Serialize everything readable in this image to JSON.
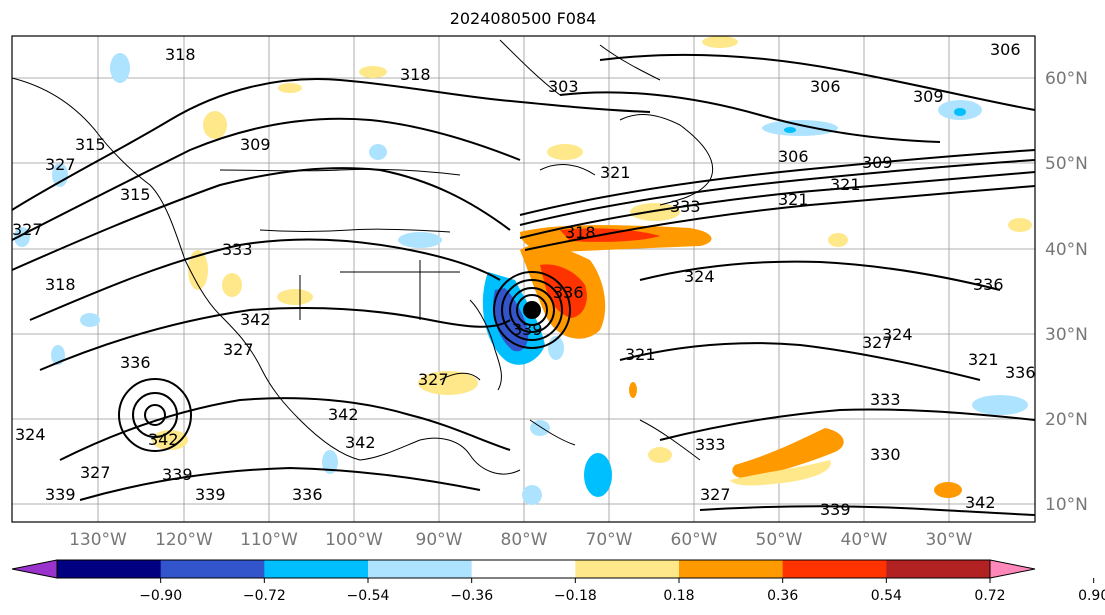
{
  "title": "2024080500 F084",
  "map": {
    "lon_labels": [
      "130°W",
      "120°W",
      "110°W",
      "100°W",
      "90°W",
      "80°W",
      "70°W",
      "60°W",
      "50°W",
      "40°W",
      "30°W"
    ],
    "lat_labels": [
      "60°N",
      "50°N",
      "40°N",
      "30°N",
      "20°N",
      "10°N"
    ],
    "contour_labels": [
      "318",
      "318",
      "303",
      "306",
      "309",
      "306",
      "309",
      "306",
      "315",
      "321",
      "327",
      "309",
      "315",
      "327",
      "318",
      "321",
      "318",
      "333",
      "342",
      "324",
      "321",
      "327",
      "333",
      "336",
      "339",
      "324",
      "336",
      "342",
      "342",
      "339",
      "327",
      "336",
      "324",
      "339",
      "327",
      "339",
      "327",
      "327",
      "333",
      "330",
      "342",
      "339",
      "336",
      "321",
      "333",
      "321",
      "336",
      "342"
    ]
  },
  "colorbar": {
    "ticks": [
      "−0.90",
      "−0.72",
      "−0.54",
      "−0.36",
      "−0.18",
      "0.18",
      "0.36",
      "0.54",
      "0.72",
      "0.90"
    ],
    "colors": [
      "#9933cc",
      "#000080",
      "#3355cc",
      "#00bfff",
      "#aee3ff",
      "#ffffff",
      "#ffe88a",
      "#ff9900",
      "#ff3300",
      "#b22222",
      "#ff88bb"
    ]
  }
}
